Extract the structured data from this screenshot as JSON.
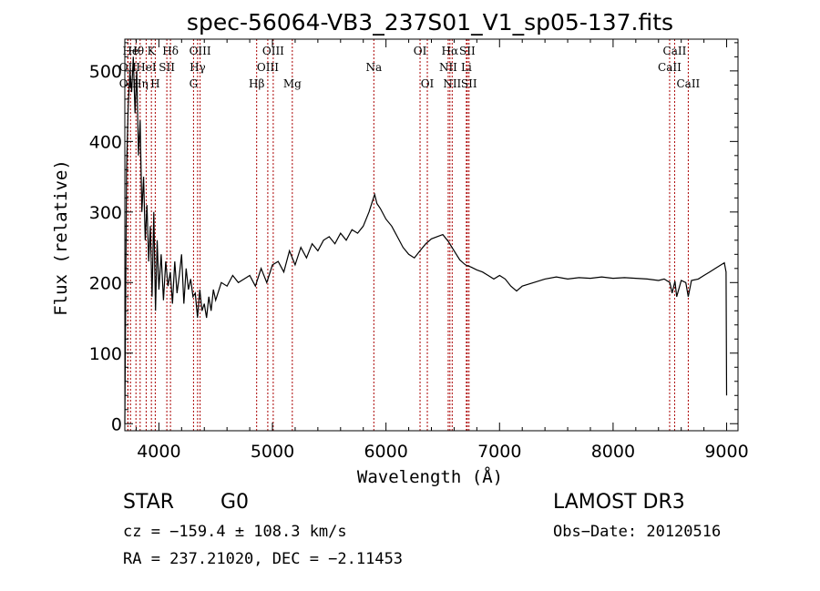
{
  "chart_data": {
    "type": "line",
    "title": "spec-56064-VB3_237S01_V1_sp05-137.fits",
    "xlabel": "Wavelength (Å)",
    "ylabel": "Flux (relative)",
    "xlim": [
      3700,
      9100
    ],
    "ylim": [
      -10,
      545
    ],
    "xticks": [
      4000,
      5000,
      6000,
      7000,
      8000,
      9000
    ],
    "yticks": [
      0,
      100,
      200,
      300,
      400,
      500
    ],
    "line_color": "#000000",
    "marker_color": "#aa0000",
    "series": [
      {
        "x": [
          3700,
          3715,
          3730,
          3745,
          3760,
          3775,
          3790,
          3805,
          3820,
          3835,
          3850,
          3865,
          3880,
          3895,
          3910,
          3925,
          3940,
          3955,
          3970,
          3985,
          4000,
          4020,
          4040,
          4060,
          4080,
          4100,
          4120,
          4140,
          4160,
          4180,
          4200,
          4220,
          4240,
          4260,
          4280,
          4300,
          4320,
          4340,
          4360,
          4380,
          4400,
          4420,
          4440,
          4460,
          4480,
          4500,
          4550,
          4600,
          4650,
          4700,
          4750,
          4800,
          4850,
          4900,
          4950,
          5000,
          5050,
          5100,
          5150,
          5200,
          5250,
          5300,
          5350,
          5400,
          5450,
          5500,
          5550,
          5600,
          5650,
          5700,
          5750,
          5800,
          5850,
          5880,
          5900,
          5920,
          5950,
          6000,
          6050,
          6100,
          6150,
          6200,
          6250,
          6300,
          6350,
          6400,
          6450,
          6500,
          6550,
          6600,
          6650,
          6700,
          6750,
          6800,
          6850,
          6900,
          6950,
          7000,
          7050,
          7100,
          7150,
          7200,
          7300,
          7400,
          7500,
          7600,
          7700,
          7800,
          7900,
          8000,
          8100,
          8200,
          8300,
          8400,
          8450,
          8500,
          8520,
          8545,
          8560,
          8600,
          8640,
          8662,
          8690,
          8750,
          8800,
          8850,
          8900,
          8950,
          8980,
          8995,
          9000
        ],
        "values": [
          0,
          360,
          450,
          500,
          470,
          520,
          440,
          500,
          380,
          430,
          300,
          350,
          260,
          310,
          230,
          280,
          180,
          300,
          160,
          260,
          190,
          240,
          175,
          230,
          195,
          215,
          170,
          230,
          185,
          210,
          240,
          170,
          220,
          190,
          205,
          180,
          185,
          150,
          190,
          160,
          170,
          150,
          180,
          160,
          190,
          175,
          200,
          195,
          210,
          200,
          205,
          210,
          195,
          220,
          200,
          225,
          230,
          215,
          245,
          225,
          250,
          235,
          255,
          245,
          260,
          265,
          255,
          270,
          260,
          275,
          270,
          280,
          300,
          315,
          325,
          312,
          305,
          290,
          280,
          265,
          250,
          240,
          235,
          245,
          255,
          262,
          265,
          268,
          258,
          245,
          232,
          225,
          222,
          218,
          215,
          210,
          205,
          210,
          205,
          195,
          188,
          195,
          200,
          205,
          208,
          205,
          207,
          206,
          208,
          206,
          207,
          206,
          205,
          203,
          205,
          200,
          185,
          202,
          180,
          203,
          200,
          180,
          203,
          205,
          210,
          215,
          220,
          225,
          228,
          215,
          40
        ]
      }
    ],
    "annotations": [
      {
        "text": "He",
        "x": 3750,
        "row": 1
      },
      {
        "text": "OII",
        "x": 3727,
        "row": 2
      },
      {
        "text": "OII",
        "x": 3727,
        "row": 3
      },
      {
        "text": "Hθ",
        "x": 3798,
        "row": 1
      },
      {
        "text": "Hη",
        "x": 3835,
        "row": 3
      },
      {
        "text": "K",
        "x": 3934,
        "row": 1
      },
      {
        "text": "H",
        "x": 3968,
        "row": 3
      },
      {
        "text": "HeI",
        "x": 3888,
        "row": 2
      },
      {
        "text": "SII",
        "x": 4070,
        "row": 2
      },
      {
        "text": "Hδ",
        "x": 4102,
        "row": 1
      },
      {
        "text": "OIII",
        "x": 4363,
        "row": 1
      },
      {
        "text": "Hγ",
        "x": 4341,
        "row": 2
      },
      {
        "text": "G",
        "x": 4305,
        "row": 3
      },
      {
        "text": "Hβ",
        "x": 4861,
        "row": 3
      },
      {
        "text": "OIII",
        "x": 5007,
        "row": 1
      },
      {
        "text": "OIII",
        "x": 4959,
        "row": 2
      },
      {
        "text": "Mg",
        "x": 5175,
        "row": 3
      },
      {
        "text": "Na",
        "x": 5893,
        "row": 2
      },
      {
        "text": "OI",
        "x": 6300,
        "row": 1
      },
      {
        "text": "OI",
        "x": 6364,
        "row": 3
      },
      {
        "text": "Hα",
        "x": 6563,
        "row": 1
      },
      {
        "text": "NII",
        "x": 6548,
        "row": 2
      },
      {
        "text": "NII",
        "x": 6583,
        "row": 3
      },
      {
        "text": "SII",
        "x": 6716,
        "row": 1
      },
      {
        "text": "Li",
        "x": 6708,
        "row": 2
      },
      {
        "text": "SII",
        "x": 6731,
        "row": 3
      },
      {
        "text": "CaII",
        "x": 8542,
        "row": 1
      },
      {
        "text": "CaII",
        "x": 8498,
        "row": 2
      },
      {
        "text": "CaII",
        "x": 8662,
        "row": 3
      }
    ]
  },
  "info": {
    "class": "STAR",
    "subclass": "G0",
    "survey": "LAMOST DR3",
    "cz": "cz = −159.4 ± 108.3 km/s",
    "obs_date": "Obs−Date: 20120516",
    "radec": "RA = 237.21020, DEC =  −2.11453"
  }
}
